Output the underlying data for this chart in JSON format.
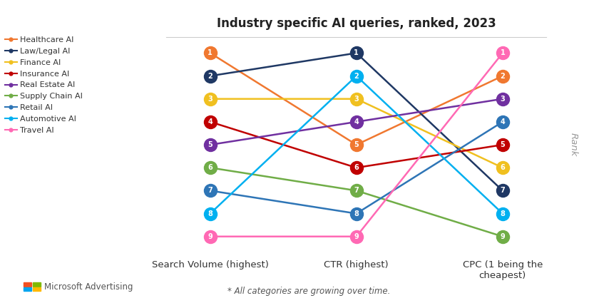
{
  "title": "Industry specific AI queries, ranked, 2023",
  "x_labels": [
    "Search Volume (highest)",
    "CTR (highest)",
    "CPC (1 being the\ncheapest)"
  ],
  "y_label": "Rank",
  "subtitle": "* All categories are growing over time.",
  "series": [
    {
      "name": "Healthcare AI",
      "color": "#F07830",
      "ranks": [
        1,
        5,
        2
      ]
    },
    {
      "name": "Law/Legal AI",
      "color": "#1F3864",
      "ranks": [
        2,
        1,
        7
      ]
    },
    {
      "name": "Finance AI",
      "color": "#F0C020",
      "ranks": [
        3,
        3,
        6
      ]
    },
    {
      "name": "Insurance AI",
      "color": "#C00000",
      "ranks": [
        4,
        6,
        5
      ]
    },
    {
      "name": "Real Estate AI",
      "color": "#7030A0",
      "ranks": [
        5,
        4,
        3
      ]
    },
    {
      "name": "Supply Chain AI",
      "color": "#70AD47",
      "ranks": [
        6,
        7,
        9
      ]
    },
    {
      "name": "Retail AI",
      "color": "#2E75B6",
      "ranks": [
        7,
        8,
        4
      ]
    },
    {
      "name": "Automotive AI",
      "color": "#00B0F0",
      "ranks": [
        8,
        2,
        8
      ]
    },
    {
      "name": "Travel AI",
      "color": "#FF69B4",
      "ranks": [
        9,
        9,
        1
      ]
    }
  ],
  "x_positions": [
    0,
    1,
    2
  ],
  "ylim_min": 0.3,
  "ylim_max": 9.7,
  "background_color": "#FFFFFF",
  "marker_size": 14,
  "marker_font_size": 7,
  "line_width": 1.8,
  "title_fontsize": 12,
  "axis_label_fontsize": 9.5,
  "legend_fontsize": 8,
  "ms_logo_colors": [
    "#F25022",
    "#7FBA00",
    "#00A4EF",
    "#FFB900"
  ]
}
